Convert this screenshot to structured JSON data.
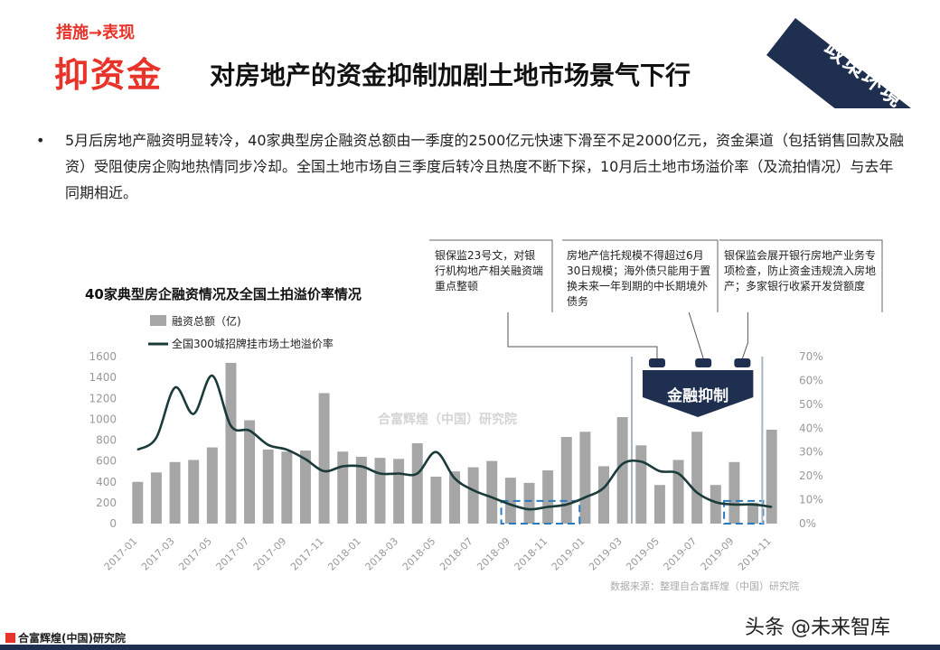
{
  "header": {
    "kicker": "措施→表现",
    "tag": "抑资金",
    "title": "对房地产的资金抑制加剧土地市场景气下行",
    "corner_label": "政策环境"
  },
  "bullet": {
    "symbol": "•",
    "text": "5月后房地产融资明显转冷，40家典型房企融资总额由一季度的2500亿元快速下滑至不足2000亿元，资金渠道（包括销售回款及融资）受阻使房企购地热情同步冷却。全国土地市场自三季度后转冷且热度不断下探，10月后土地市场溢价率（及流拍情况）与去年同期相近。"
  },
  "annotations": [
    "银保监23号文，对银行机构地产相关融资端重点整顿",
    "房地产信托规模不得超过6月30日规模；海外债只能用于置换未来一年到期的中长期境外债务",
    "银保监会展开银行房地产业务专项检查，防止资金违规流入房地产；多家银行收紧开发贷额度"
  ],
  "callout_label": "金融抑制",
  "chart_watermark": "合富辉煌（中国）研究院",
  "source": "数据来源：整理自合富辉煌（中国）研究院",
  "footer_logo": "合富辉煌(中国)研究院",
  "watermark": "头条 @未来智库",
  "colors": {
    "accent_red": "#e8332a",
    "navy": "#1f2f4f",
    "bar": "#a6a6a6",
    "line": "#1b3a3a",
    "dashed_box": "#2b7bc0"
  },
  "chart_data": {
    "type": "bar",
    "title": "40家典型房企融资情况及全国土拍溢价率情况",
    "categories": [
      "2017-01",
      "2017-02",
      "2017-03",
      "2017-04",
      "2017-05",
      "2017-06",
      "2017-07",
      "2017-08",
      "2017-09",
      "2017-10",
      "2017-11",
      "2017-12",
      "2018-01",
      "2018-02",
      "2018-03",
      "2018-04",
      "2018-05",
      "2018-06",
      "2018-07",
      "2018-08",
      "2018-09",
      "2018-10",
      "2018-11",
      "2018-12",
      "2019-01",
      "2019-02",
      "2019-03",
      "2019-04",
      "2019-05",
      "2019-06",
      "2019-07",
      "2019-08",
      "2019-09",
      "2019-10",
      "2019-11"
    ],
    "x_tick_labels": [
      "2017-01",
      "2017-03",
      "2017-05",
      "2017-07",
      "2017-09",
      "2017-11",
      "2018-01",
      "2018-03",
      "2018-05",
      "2018-07",
      "2018-09",
      "2018-11",
      "2019-01",
      "2019-03",
      "2019-05",
      "2019-07",
      "2019-09",
      "2019-11"
    ],
    "series": [
      {
        "name": "融资总额（亿)",
        "type": "bar",
        "axis": "left",
        "values": [
          400,
          490,
          590,
          610,
          730,
          1540,
          990,
          710,
          690,
          700,
          1250,
          690,
          640,
          630,
          620,
          770,
          450,
          500,
          540,
          600,
          440,
          390,
          510,
          830,
          880,
          550,
          1020,
          750,
          370,
          610,
          880,
          370,
          590,
          200,
          900
        ]
      },
      {
        "name": "全国300城招牌挂市场土地溢价率",
        "type": "line",
        "axis": "right",
        "values": [
          31,
          36,
          57,
          46,
          62,
          41,
          39,
          33,
          31,
          27,
          22,
          24,
          24,
          21,
          21,
          21,
          30,
          19,
          14,
          11,
          8,
          6,
          7,
          8,
          11,
          15,
          25,
          26,
          22,
          21,
          13,
          9,
          8,
          8,
          7
        ]
      }
    ],
    "y_left": {
      "min": 0,
      "max": 1600,
      "ticks": [
        0,
        200,
        400,
        600,
        800,
        1000,
        1200,
        1400,
        1600
      ]
    },
    "y_right": {
      "min": 0,
      "max": 70,
      "ticks": [
        "0%",
        "10%",
        "20%",
        "30%",
        "40%",
        "50%",
        "60%",
        "70%"
      ]
    },
    "legend_position": "top-left"
  }
}
